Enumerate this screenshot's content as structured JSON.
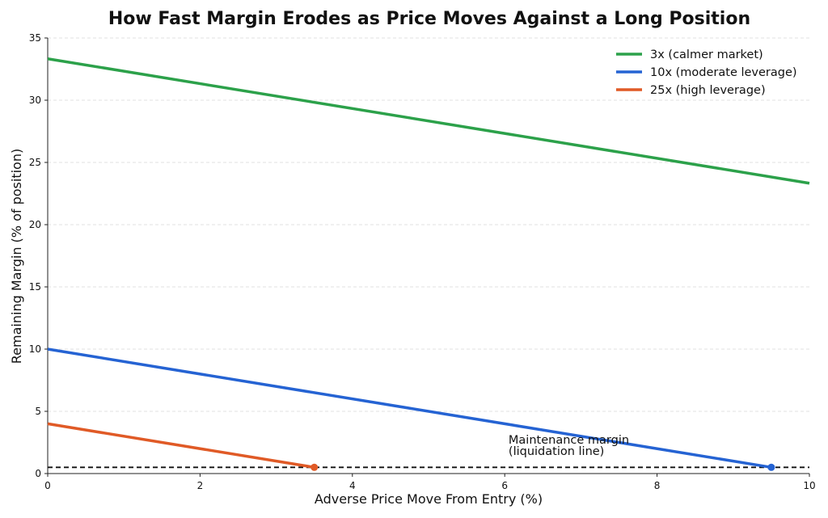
{
  "chart_data": {
    "type": "line",
    "title": "How Fast Margin Erodes as Price Moves Against a Long Position",
    "xlabel": "Adverse Price Move From Entry (%)",
    "ylabel": "Remaining Margin (% of position)",
    "xlim": [
      0,
      10
    ],
    "ylim": [
      0,
      35
    ],
    "xticks": [
      0,
      2,
      4,
      6,
      8,
      10
    ],
    "yticks": [
      0,
      5,
      10,
      15,
      20,
      25,
      30,
      35
    ],
    "grid": "horizontal-dashed",
    "legend_position": "top-right",
    "series": [
      {
        "name": "3x (calmer market)",
        "color": "#2ca14a",
        "x": [
          0,
          10
        ],
        "y": [
          33.33,
          23.33
        ],
        "marker_end": false
      },
      {
        "name": "10x (moderate leverage)",
        "color": "#2563d3",
        "x": [
          0,
          9.5
        ],
        "y": [
          10.0,
          0.5
        ],
        "marker_end": true
      },
      {
        "name": "25x (high leverage)",
        "color": "#e05a26",
        "x": [
          0,
          3.5
        ],
        "y": [
          4.0,
          0.5
        ],
        "marker_end": true
      }
    ],
    "reference_line": {
      "y": 0.5,
      "style": "dashed",
      "color": "#111111"
    },
    "annotation": {
      "lines": [
        "Maintenance margin",
        "(liquidation line)"
      ],
      "x": 6.05,
      "y": 1.3
    }
  }
}
